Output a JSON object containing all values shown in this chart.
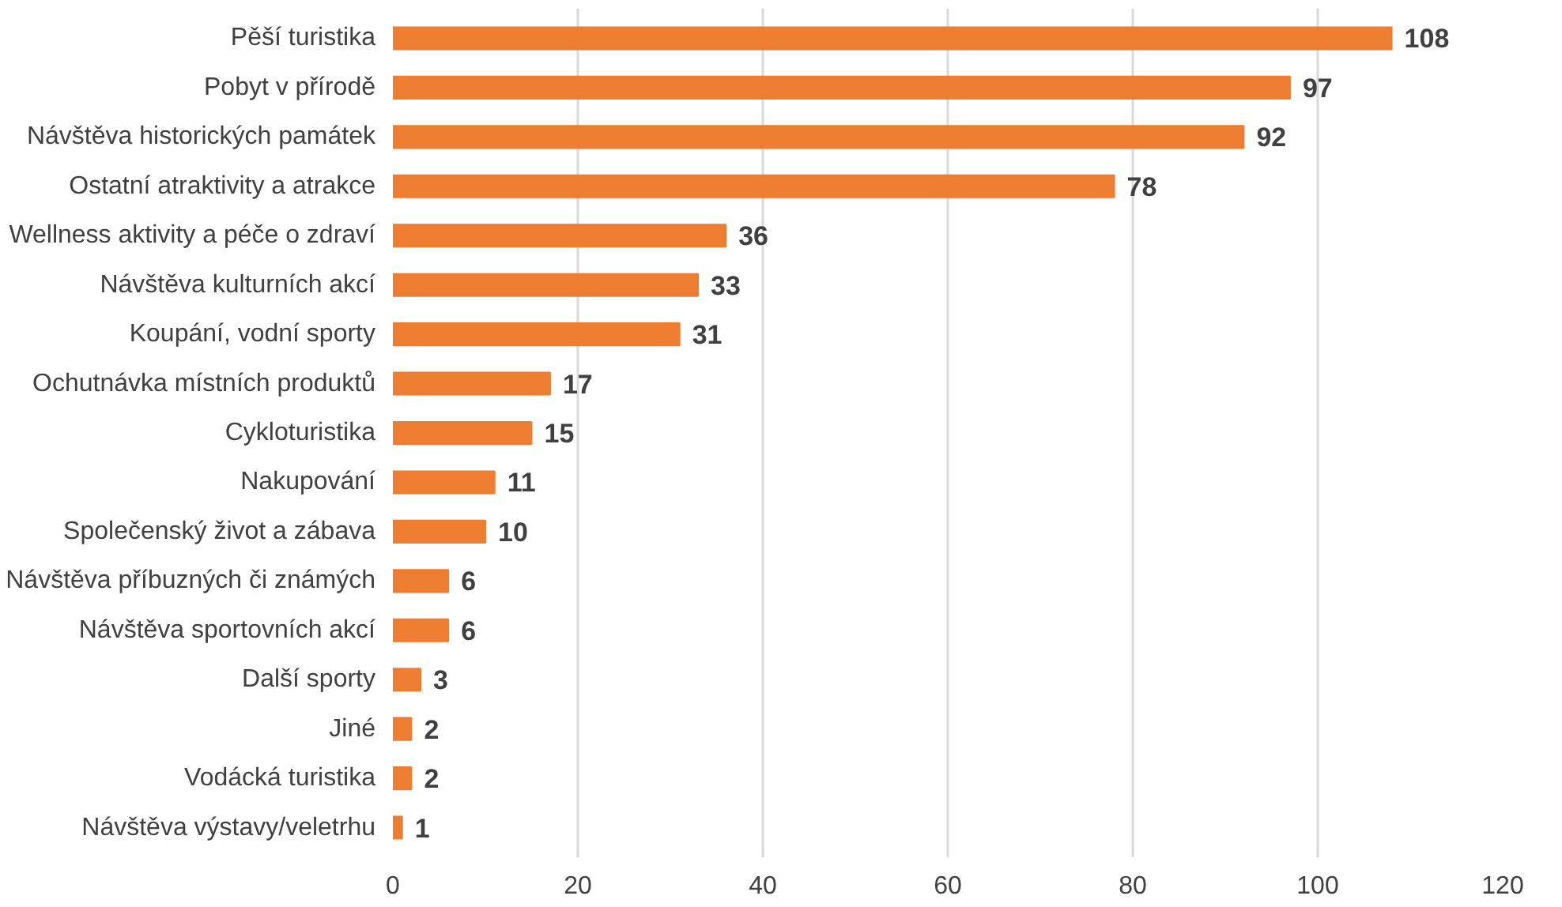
{
  "chart_data": {
    "type": "bar",
    "orientation": "horizontal",
    "categories": [
      "Pěší turistika",
      "Pobyt v přírodě",
      "Návštěva historických památek",
      "Ostatní atraktivity a atrakce",
      "Wellness aktivity a péče o zdraví",
      "Návštěva kulturních akcí",
      "Koupání, vodní sporty",
      "Ochutnávka místních produktů",
      "Cykloturistika",
      "Nakupování",
      "Společenský život a zábava",
      "Návštěva příbuzných či známých",
      "Návštěva sportovních akcí",
      "Další sporty",
      "Jiné",
      "Vodácká turistika",
      "Návštěva výstavy/veletrhu"
    ],
    "values": [
      108,
      97,
      92,
      78,
      36,
      33,
      31,
      17,
      15,
      11,
      10,
      6,
      6,
      3,
      2,
      2,
      1
    ],
    "color": "#ed7d31",
    "xlim": [
      0,
      120
    ],
    "xticks": [
      0,
      20,
      40,
      60,
      80,
      100,
      120
    ],
    "grid": "x",
    "data_labels": true
  }
}
